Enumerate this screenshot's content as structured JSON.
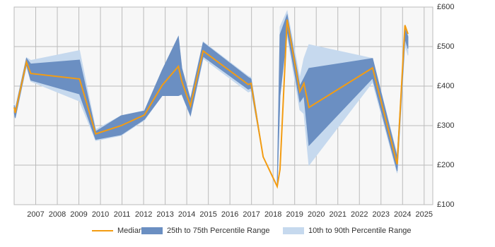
{
  "chart_data": {
    "type": "range-line",
    "x": [
      2006.0,
      2006.05,
      2006.57,
      2006.77,
      2009.03,
      2009.78,
      2010.96,
      2012.04,
      2012.86,
      2013.61,
      2013.77,
      2014.17,
      2014.76,
      2016.85,
      2016.98,
      2017.54,
      2018.19,
      2018.32,
      2018.65,
      2019.24,
      2019.43,
      2019.66,
      2022.61,
      2023.75,
      2024.11,
      2024.25
    ],
    "series": [
      {
        "name": "10th to 90th Percentile Range",
        "color": "#c6d9ee",
        "low": [
          330,
          318,
          450,
          412,
          362,
          262,
          275,
          314,
          376,
          376,
          378,
          324,
          470,
          385,
          388,
          221,
          146,
          375,
          530,
          340,
          330,
          200,
          410,
          180,
          505,
          478
        ],
        "high": [
          355,
          342,
          472,
          465,
          490,
          290,
          325,
          338,
          440,
          525,
          445,
          368,
          512,
          425,
          422,
          221,
          146,
          550,
          590,
          420,
          470,
          505,
          470,
          225,
          555,
          530
        ]
      },
      {
        "name": "25th to 75th Percentile Range",
        "color": "#6b8fc2",
        "low": [
          332,
          320,
          455,
          415,
          380,
          265,
          277,
          316,
          376,
          376,
          380,
          326,
          475,
          392,
          395,
          221,
          146,
          375,
          540,
          360,
          375,
          250,
          420,
          185,
          520,
          495
        ],
        "high": [
          352,
          340,
          470,
          456,
          466,
          285,
          325,
          337,
          440,
          525,
          445,
          365,
          510,
          422,
          418,
          221,
          146,
          530,
          580,
          400,
          420,
          445,
          470,
          220,
          545,
          525
        ]
      },
      {
        "name": "Median",
        "color": "#f39c12",
        "values": [
          346,
          332,
          461,
          432,
          418,
          279,
          300,
          327,
          402,
          450,
          412,
          350,
          489,
          404,
          407,
          221,
          146,
          189,
          568,
          386,
          407,
          346,
          446,
          202,
          554,
          532
        ]
      }
    ],
    "xlim": [
      2006,
      2025.4
    ],
    "xticks": [
      2007,
      2008,
      2009,
      2010,
      2011,
      2012,
      2013,
      2014,
      2015,
      2016,
      2017,
      2018,
      2019,
      2020,
      2021,
      2022,
      2023,
      2024,
      2025
    ],
    "ylim": [
      100,
      600
    ],
    "yticks": [
      {
        "value": 100,
        "label": "£100"
      },
      {
        "value": 200,
        "label": "£200"
      },
      {
        "value": 300,
        "label": "£300"
      },
      {
        "value": 400,
        "label": "£400"
      },
      {
        "value": 500,
        "label": "£500"
      },
      {
        "value": 600,
        "label": "£600"
      }
    ],
    "grid": true,
    "legend": "bottom"
  }
}
